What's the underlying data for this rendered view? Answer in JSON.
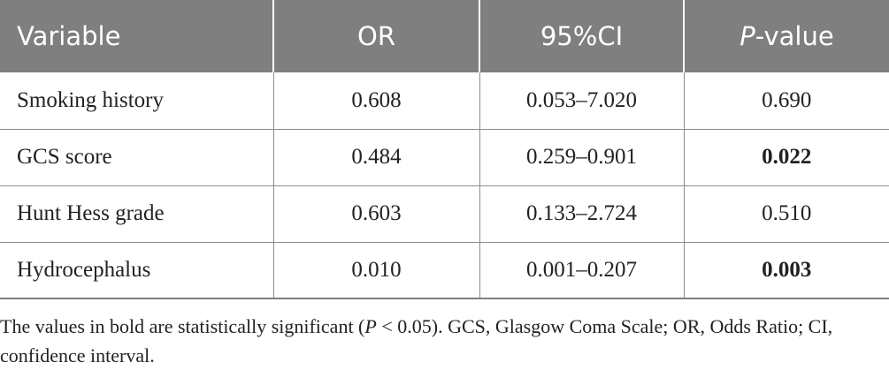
{
  "table": {
    "headers": {
      "variable": "Variable",
      "or": "OR",
      "ci": "95%CI",
      "p_italic": "P",
      "p_rest": "-value"
    },
    "rows": [
      {
        "variable": "Smoking history",
        "or": "0.608",
        "ci": "0.053–7.020",
        "p": "0.690",
        "significant": false
      },
      {
        "variable": "GCS score",
        "or": "0.484",
        "ci": "0.259–0.901",
        "p": "0.022",
        "significant": true
      },
      {
        "variable": "Hunt Hess grade",
        "or": "0.603",
        "ci": "0.133–2.724",
        "p": "0.510",
        "significant": false
      },
      {
        "variable": "Hydrocephalus",
        "or": "0.010",
        "ci": "0.001–0.207",
        "p": "0.003",
        "significant": true
      }
    ],
    "colors": {
      "header_bg": "#7f7f7f",
      "header_text": "#ffffff",
      "body_text": "#222222",
      "rule": "#8c8c8c"
    }
  },
  "footnote": {
    "part1": "The values in bold are statistically significant (",
    "p_italic": "P",
    "part2": " < 0.05). GCS, Glasgow Coma Scale; OR, Odds Ratio; CI, confidence interval."
  }
}
